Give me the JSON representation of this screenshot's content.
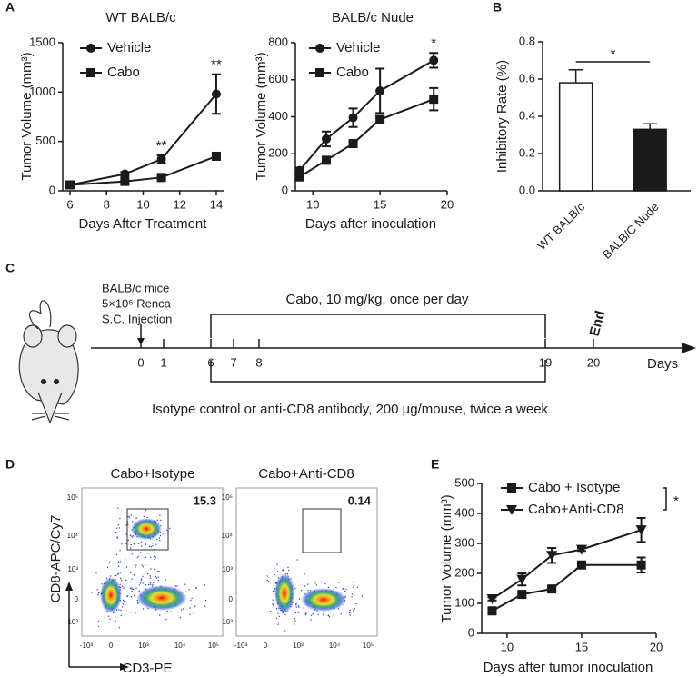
{
  "panel_labels": [
    "A",
    "B",
    "C",
    "D",
    "E"
  ],
  "chart_data": [
    {
      "type": "line",
      "title": "WT BALB/c",
      "x_label": "Days After Treatment",
      "y_label": "Tumor Volume (mm³)",
      "x": [
        6,
        9,
        11,
        14
      ],
      "series": [
        {
          "name": "Vehicle",
          "marker": "circle",
          "color": "#1a1a1a",
          "values": [
            60,
            170,
            320,
            980
          ],
          "errors": [
            5,
            20,
            40,
            200
          ]
        },
        {
          "name": "Cabo",
          "marker": "square",
          "color": "#1a1a1a",
          "values": [
            60,
            95,
            135,
            350
          ],
          "errors": [
            5,
            10,
            15,
            15
          ]
        }
      ],
      "xlim": [
        5.6,
        14.4
      ],
      "xticks": [
        6,
        8,
        10,
        12,
        14
      ],
      "ylim": [
        0,
        1500
      ],
      "yticks": [
        0,
        500,
        1000,
        1500
      ],
      "legend": "upper left",
      "annotations": [
        {
          "x": 11,
          "text": "**"
        },
        {
          "x": 14,
          "text": "**"
        }
      ]
    },
    {
      "type": "line",
      "title": "BALB/c Nude",
      "x_label": "Days after inoculation",
      "y_label": "Tumor Volume (mm³)",
      "x": [
        9,
        11,
        13,
        15,
        19
      ],
      "series": [
        {
          "name": "Vehicle",
          "marker": "circle",
          "color": "#1a1a1a",
          "values": [
            110,
            280,
            395,
            540,
            705
          ],
          "errors": [
            15,
            40,
            50,
            120,
            40
          ]
        },
        {
          "name": "Cabo",
          "marker": "square",
          "color": "#1a1a1a",
          "values": [
            75,
            165,
            255,
            385,
            495
          ],
          "errors": [
            10,
            15,
            10,
            20,
            60
          ]
        }
      ],
      "xlim": [
        8.7,
        20
      ],
      "xticks": [
        10,
        15,
        20
      ],
      "ylim": [
        0,
        800
      ],
      "yticks": [
        0,
        200,
        400,
        600,
        800
      ],
      "legend": "upper left",
      "annotations": [
        {
          "x": 19,
          "text": "*"
        }
      ]
    },
    {
      "type": "bar",
      "y_label": "Inhibitory Rate (%)",
      "categories": [
        "WT BALB/c",
        "BALB/C Nude"
      ],
      "values": [
        0.58,
        0.33
      ],
      "errors": [
        0.07,
        0.03
      ],
      "colors": [
        "#ffffff",
        "#1a1a1a"
      ],
      "ylim": [
        0,
        0.8
      ],
      "yticks": [
        {
          "value": 0,
          "label": "0.0"
        },
        0.2,
        0.4,
        0.6,
        0.8
      ],
      "significance": "*"
    },
    {
      "type": "line",
      "x_label": "Days after tumor inoculation",
      "y_label": "Tumor Volume (mm³)",
      "x": [
        9,
        11,
        13,
        15,
        19
      ],
      "series": [
        {
          "name": "Cabo + Isotype",
          "marker": "square",
          "color": "#1a1a1a",
          "values": [
            75,
            130,
            148,
            228,
            228
          ],
          "errors": [
            5,
            8,
            5,
            5,
            25
          ]
        },
        {
          "name": "Cabo+Anti-CD8",
          "marker": "triangle-down",
          "color": "#1a1a1a",
          "values": [
            115,
            180,
            260,
            280,
            345
          ],
          "errors": [
            5,
            20,
            25,
            5,
            40
          ]
        }
      ],
      "xlim": [
        8.3,
        20
      ],
      "xticks": [
        10,
        15,
        20
      ],
      "ylim": [
        0,
        500
      ],
      "yticks": [
        0,
        100,
        200,
        300,
        400,
        500
      ],
      "legend": "upper left",
      "legend_annotation": "*"
    }
  ],
  "timeline": {
    "start_note": [
      "BALB/c mice",
      "5×10⁶ Renca",
      "S.C. Injection"
    ],
    "treatment": "Cabo, 10 mg/kg, once per day",
    "end": "End",
    "axis_label": "Days",
    "days": [
      0,
      1,
      6,
      7,
      8,
      19,
      20
    ],
    "antibody": "Isotype control or anti-CD8 antibody, 200 µg/mouse, twice a week"
  },
  "flow": {
    "y_label": "CD8-APC/Cy7",
    "x_label": "CD3-PE",
    "axis_ticks": [
      "-10³",
      "0",
      "10³",
      "10⁴",
      "10⁵"
    ],
    "plots": [
      {
        "title": "Cabo+Isotype",
        "gate_value": 15.3
      },
      {
        "title": "Cabo+Anti-CD8",
        "gate_value": 0.14
      }
    ]
  }
}
